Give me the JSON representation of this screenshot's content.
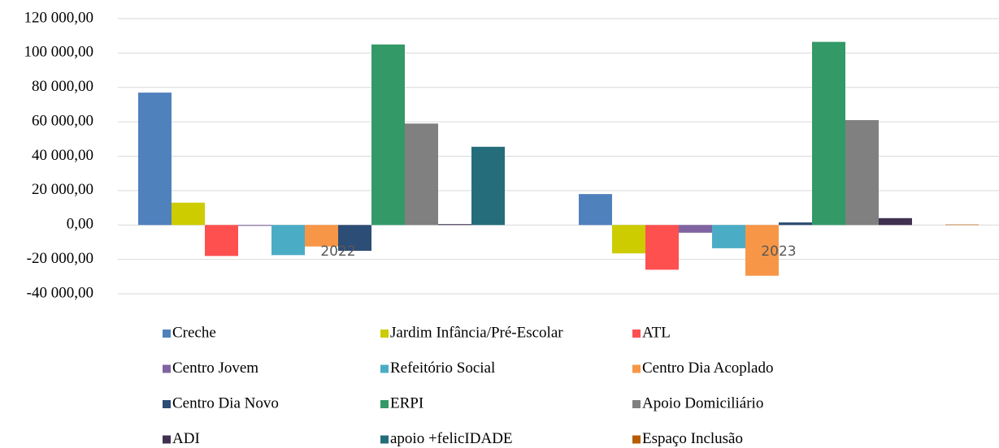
{
  "chart_data": {
    "type": "bar",
    "categories": [
      "2022",
      "2023"
    ],
    "series": [
      {
        "name": "Creche",
        "color": "#4f81bd",
        "values": [
          77000,
          18000
        ]
      },
      {
        "name": "Jardim Infância/Pré-Escolar",
        "color": "#cccc00",
        "values": [
          13000,
          -16500
        ]
      },
      {
        "name": "ATL",
        "color": "#ff5050",
        "values": [
          -18000,
          -26000
        ]
      },
      {
        "name": "Centro Jovem",
        "color": "#8064a2",
        "values": [
          -500,
          -4500
        ]
      },
      {
        "name": "Refeitório Social",
        "color": "#4bacc6",
        "values": [
          -17500,
          -13500
        ]
      },
      {
        "name": "Centro Dia Acoplado",
        "color": "#f79646",
        "values": [
          -12500,
          -29500
        ]
      },
      {
        "name": "Centro Dia Novo",
        "color": "#2c4d75",
        "values": [
          -15000,
          1500
        ]
      },
      {
        "name": "ERPI",
        "color": "#339966",
        "values": [
          105000,
          106500
        ]
      },
      {
        "name": "Apoio Domiciliário",
        "color": "#808080",
        "values": [
          59000,
          61000
        ]
      },
      {
        "name": "ADI",
        "color": "#403151",
        "values": [
          500,
          4000
        ]
      },
      {
        "name": "apoio +felicIDADE",
        "color": "#256d7b",
        "values": [
          45500,
          0
        ]
      },
      {
        "name": "Espaço Inclusão",
        "color": "#b85c00",
        "values": [
          0,
          300
        ]
      }
    ],
    "ylim": [
      -40000,
      120000
    ],
    "yticks": [
      {
        "value": -40000,
        "label": "-40 000,00"
      },
      {
        "value": -20000,
        "label": "-20 000,00"
      },
      {
        "value": 0,
        "label": "0,00"
      },
      {
        "value": 20000,
        "label": "20 000,00"
      },
      {
        "value": 40000,
        "label": "40 000,00"
      },
      {
        "value": 60000,
        "label": "60 000,00"
      },
      {
        "value": 80000,
        "label": "80 000,00"
      },
      {
        "value": 100000,
        "label": "100 000,00"
      },
      {
        "value": 120000,
        "label": "120 000,00"
      }
    ],
    "grid": true,
    "negative_tick_color": "#ff0000",
    "legend": "bottom"
  }
}
